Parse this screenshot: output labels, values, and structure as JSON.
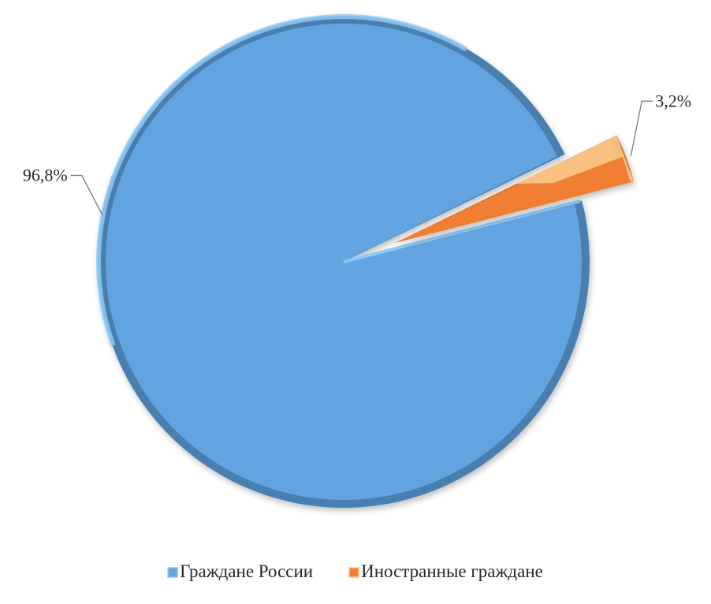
{
  "chart_data": {
    "type": "pie",
    "title": "",
    "legend_position": "bottom",
    "slices": [
      {
        "name": "Граждане России",
        "value": 96.8,
        "label": "96,8%",
        "color": "#62a4e0",
        "edge_color": "#4a7fb0",
        "highlight_color": "#8ec9f5",
        "exploded": false
      },
      {
        "name": "Иностранные граждане",
        "value": 3.2,
        "label": "3,2%",
        "color": "#f07e30",
        "edge_color": "#c9601c",
        "highlight_color": "#f9c98a",
        "exploded": true
      }
    ]
  }
}
